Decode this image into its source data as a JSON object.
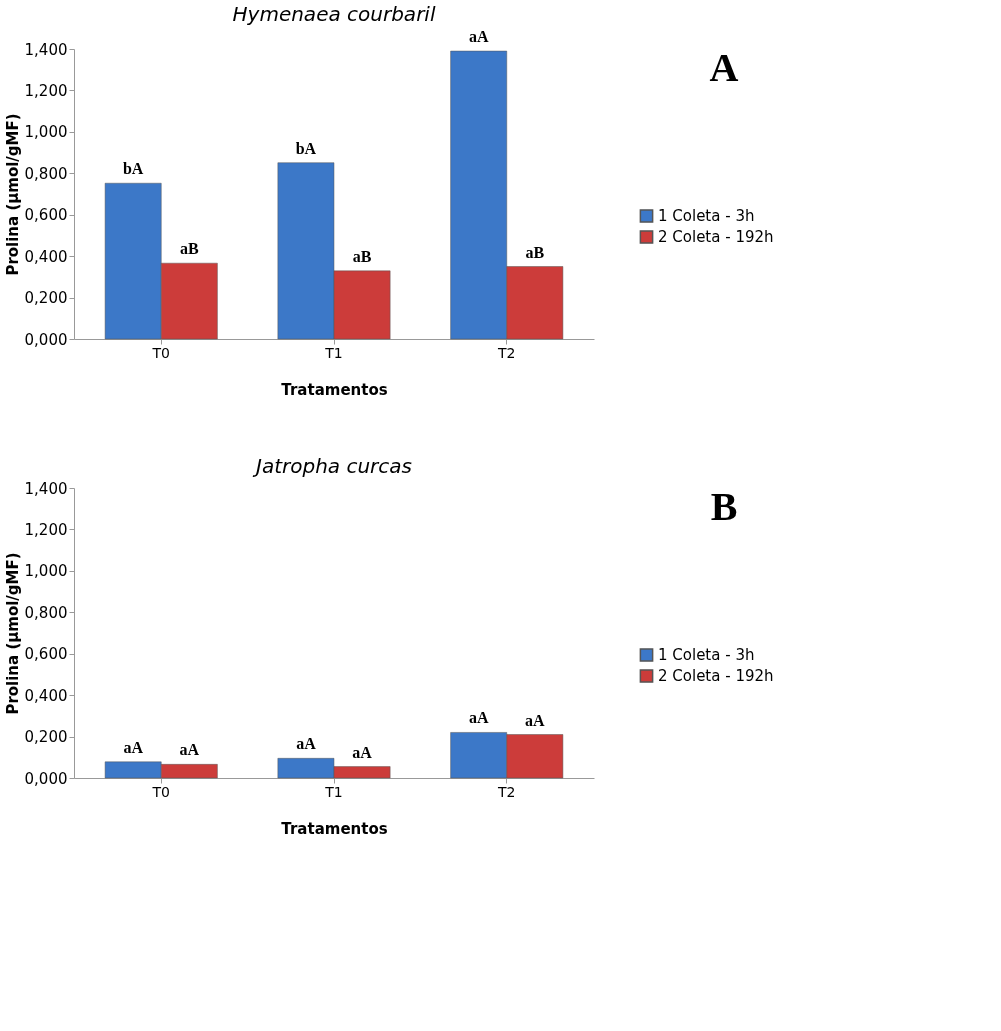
{
  "chart_data": [
    {
      "type": "bar",
      "title": "Hymenaea courbaril",
      "xlabel": "Tratamentos",
      "ylabel": "Prolina (µmol/gMF)",
      "categories": [
        "T0",
        "T1",
        "T2"
      ],
      "series": [
        {
          "name": "1 Coleta - 3h",
          "color": "#3c78c8",
          "values": [
            0.752,
            0.851,
            1.39
          ],
          "value_labels": [
            "bA",
            "bA",
            "aA"
          ]
        },
        {
          "name": "2 Coleta - 192h",
          "color": "#cc3c3a",
          "values": [
            0.366,
            0.329,
            0.35
          ],
          "value_labels": [
            "aB",
            "aB",
            "aB"
          ]
        }
      ],
      "ylim": [
        0,
        1.4
      ],
      "yticks": [
        {
          "value": 0,
          "label": "0,000"
        },
        {
          "value": 0.2,
          "label": "0,200"
        },
        {
          "value": 0.4,
          "label": "0,400"
        },
        {
          "value": 0.6,
          "label": "0,600"
        },
        {
          "value": 0.8,
          "label": "0,800"
        },
        {
          "value": 1.0,
          "label": "1,000"
        },
        {
          "value": 1.2,
          "label": "1,200"
        },
        {
          "value": 1.4,
          "label": "1,400"
        }
      ],
      "grid": false,
      "legend": "right",
      "annotations": [
        "A"
      ]
    },
    {
      "type": "bar",
      "title": "Jatropha curcas",
      "xlabel": "Tratamentos",
      "ylabel": "Prolina (µmol/gMF)",
      "categories": [
        "T0",
        "T1",
        "T2"
      ],
      "series": [
        {
          "name": "1 Coleta - 3h",
          "color": "#3c78c8",
          "values": [
            0.078,
            0.095,
            0.22
          ],
          "value_labels": [
            "aA",
            "aA",
            "aA"
          ]
        },
        {
          "name": "2 Coleta - 192h",
          "color": "#cc3c3a",
          "values": [
            0.066,
            0.055,
            0.21
          ],
          "value_labels": [
            "aA",
            "aA",
            "aA"
          ]
        }
      ],
      "ylim": [
        0,
        1.4
      ],
      "yticks": [
        {
          "value": 0,
          "label": "0,000"
        },
        {
          "value": 0.2,
          "label": "0,200"
        },
        {
          "value": 0.4,
          "label": "0,400"
        },
        {
          "value": 0.6,
          "label": "0,600"
        },
        {
          "value": 0.8,
          "label": "0,800"
        },
        {
          "value": 1.0,
          "label": "1,000"
        },
        {
          "value": 1.2,
          "label": "1,200"
        },
        {
          "value": 1.4,
          "label": "1,400"
        }
      ],
      "grid": false,
      "legend": "right",
      "annotations": [
        "B"
      ]
    }
  ]
}
